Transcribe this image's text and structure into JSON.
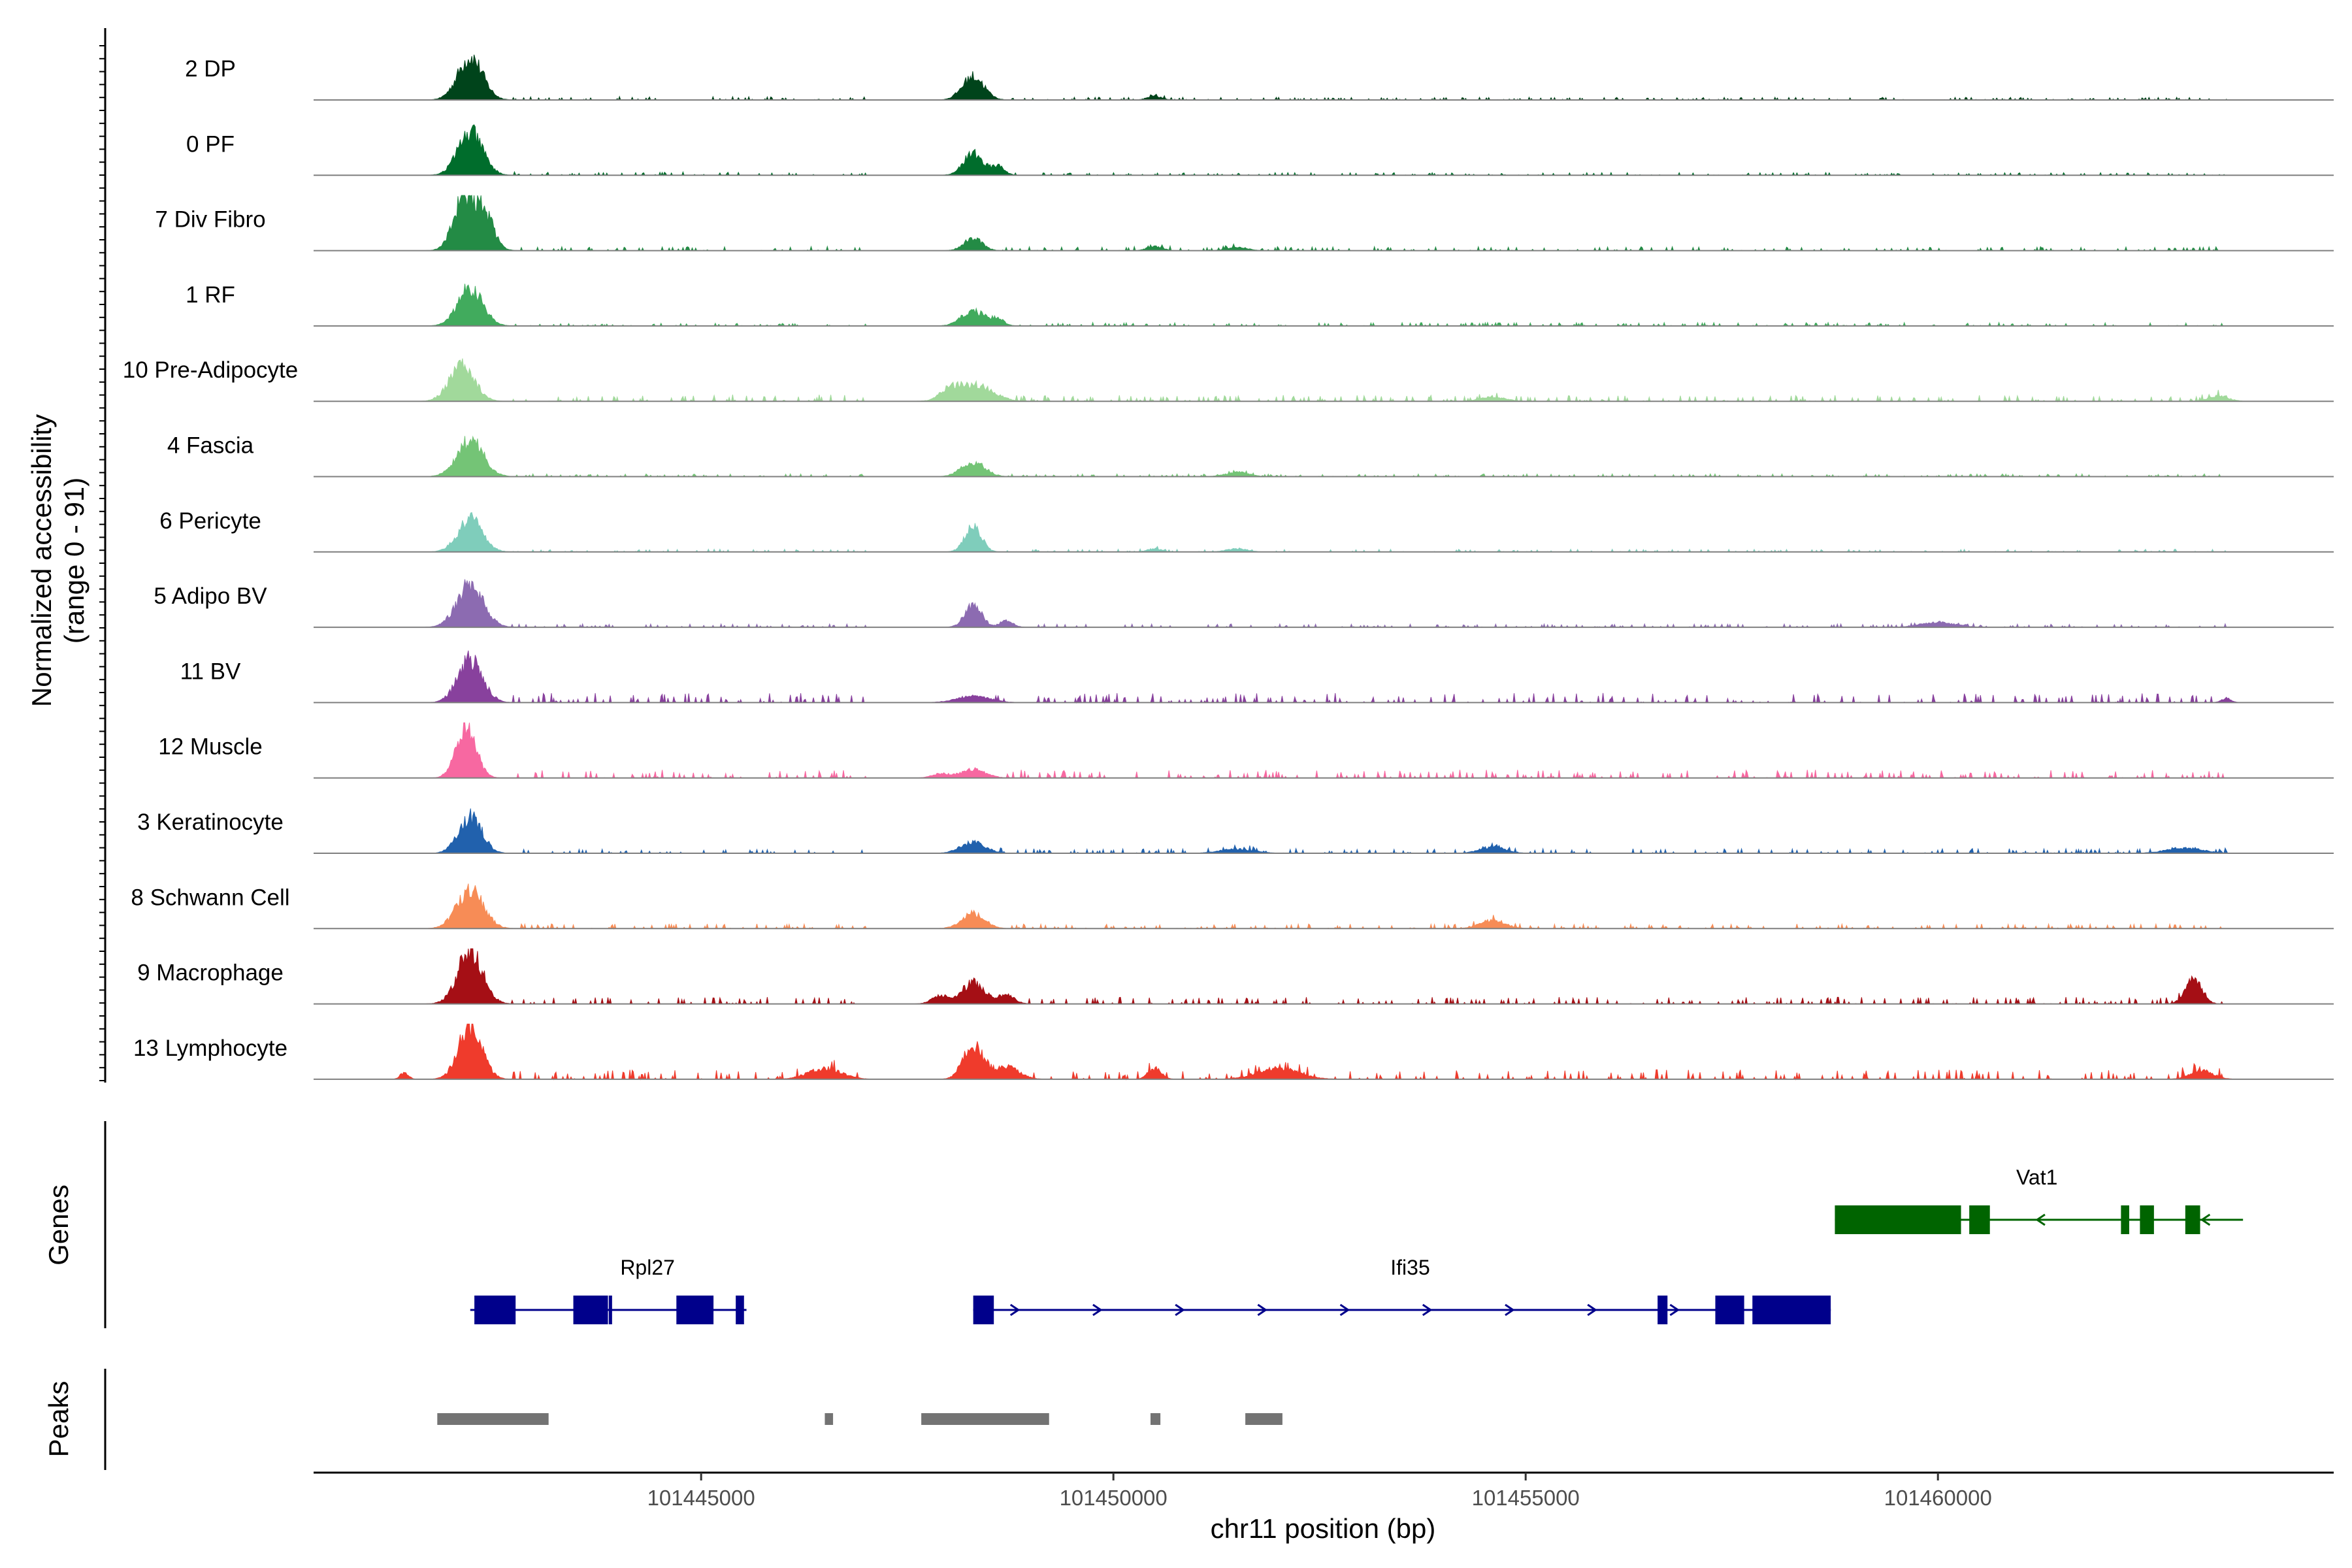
{
  "chart_data": {
    "type": "area",
    "title": "",
    "ylabel": "Normalized accessibility",
    "ylabel_range": "(range 0 - 91)",
    "y_range": [
      0,
      91
    ],
    "xlabel": "chr11 position (bp)",
    "x_range": [
      101440300,
      101464800
    ],
    "x_ticks": [
      101445000,
      101450000,
      101455000,
      101460000
    ],
    "x_tick_labels": [
      "101445000",
      "101450000",
      "101455000",
      "101460000"
    ],
    "tracks": [
      {
        "name": "2 DP",
        "color": "#00441b",
        "peaks": [
          [
            101442200,
            1.0,
            150
          ],
          [
            101448300,
            0.55,
            130
          ],
          [
            101450500,
            0.08,
            90
          ]
        ],
        "noise": [
          [
            101442700,
            101447000,
            0.05
          ],
          [
            101448700,
            101463500,
            0.04
          ]
        ]
      },
      {
        "name": "0 PF",
        "color": "#006d2c",
        "peaks": [
          [
            101442200,
            1.0,
            150
          ],
          [
            101448300,
            0.5,
            120
          ],
          [
            101448600,
            0.2,
            80
          ]
        ],
        "noise": [
          [
            101442700,
            101447000,
            0.05
          ],
          [
            101448800,
            101463500,
            0.04
          ]
        ]
      },
      {
        "name": "7 Div Fibro",
        "color": "#238b45",
        "peaks": [
          [
            101442100,
            1.1,
            120
          ],
          [
            101442350,
            0.95,
            120
          ],
          [
            101448300,
            0.3,
            110
          ],
          [
            101450500,
            0.1,
            90
          ],
          [
            101451500,
            0.08,
            120
          ]
        ],
        "noise": [
          [
            101442800,
            101447000,
            0.06
          ],
          [
            101448600,
            101463500,
            0.06
          ]
        ]
      },
      {
        "name": "1 RF",
        "color": "#41ab5d",
        "peaks": [
          [
            101442200,
            0.9,
            150
          ],
          [
            101448300,
            0.35,
            140
          ],
          [
            101448600,
            0.15,
            80
          ]
        ],
        "noise": [
          [
            101442700,
            101447000,
            0.04
          ],
          [
            101448700,
            101463500,
            0.05
          ]
        ]
      },
      {
        "name": "10 Pre-Adipocyte",
        "color": "#a1d99b",
        "peaks": [
          [
            101442100,
            0.85,
            150
          ],
          [
            101448300,
            0.4,
            220
          ],
          [
            101448000,
            0.2,
            100
          ],
          [
            101454600,
            0.1,
            150
          ],
          [
            101463400,
            0.12,
            120
          ]
        ],
        "noise": [
          [
            101442700,
            101447000,
            0.1
          ],
          [
            101448800,
            101463500,
            0.09
          ]
        ]
      },
      {
        "name": "4 Fascia",
        "color": "#74c476",
        "peaks": [
          [
            101442200,
            0.85,
            160
          ],
          [
            101448300,
            0.35,
            140
          ],
          [
            101451500,
            0.1,
            140
          ]
        ],
        "noise": [
          [
            101442700,
            101447000,
            0.04
          ],
          [
            101448700,
            101463500,
            0.04
          ]
        ]
      },
      {
        "name": "6 Pericyte",
        "color": "#7fcdbb",
        "peaks": [
          [
            101442200,
            0.75,
            150
          ],
          [
            101448300,
            0.6,
            100
          ],
          [
            101450500,
            0.08,
            80
          ],
          [
            101451500,
            0.08,
            120
          ]
        ],
        "noise": [
          [
            101442700,
            101447000,
            0.04
          ],
          [
            101448700,
            101463500,
            0.04
          ]
        ]
      },
      {
        "name": "5 Adipo BV",
        "color": "#8c6bb1",
        "peaks": [
          [
            101442200,
            1.0,
            160
          ],
          [
            101448300,
            0.55,
            100
          ],
          [
            101460000,
            0.12,
            200
          ],
          [
            101448700,
            0.15,
            80
          ]
        ],
        "noise": [
          [
            101442700,
            101447000,
            0.05
          ],
          [
            101448800,
            101463500,
            0.05
          ]
        ]
      },
      {
        "name": "11 BV",
        "color": "#88419d",
        "peaks": [
          [
            101442200,
            1.0,
            150
          ],
          [
            101448300,
            0.15,
            200
          ],
          [
            101463500,
            0.1,
            60
          ]
        ],
        "noise": [
          [
            101442700,
            101447000,
            0.14
          ],
          [
            101448500,
            101463500,
            0.14
          ]
        ]
      },
      {
        "name": "12 Muscle",
        "color": "#f768a1",
        "peaks": [
          [
            101442150,
            1.2,
            120
          ],
          [
            101448300,
            0.2,
            150
          ],
          [
            101447900,
            0.1,
            100
          ]
        ],
        "noise": [
          [
            101442700,
            101447000,
            0.12
          ],
          [
            101448600,
            101463500,
            0.12
          ]
        ]
      },
      {
        "name": "3 Keratinocyte",
        "color": "#2161ad",
        "peaks": [
          [
            101442200,
            0.85,
            140
          ],
          [
            101448300,
            0.25,
            150
          ],
          [
            101451500,
            0.1,
            200
          ],
          [
            101454600,
            0.15,
            150
          ],
          [
            101463000,
            0.12,
            220
          ]
        ],
        "noise": [
          [
            101442700,
            101447000,
            0.06
          ],
          [
            101448600,
            101463500,
            0.07
          ]
        ]
      },
      {
        "name": "8 Schwann Cell",
        "color": "#f78c56",
        "peaks": [
          [
            101442200,
            0.9,
            160
          ],
          [
            101448300,
            0.35,
            140
          ],
          [
            101454600,
            0.2,
            150
          ]
        ],
        "noise": [
          [
            101442700,
            101447000,
            0.07
          ],
          [
            101448700,
            101463500,
            0.07
          ]
        ]
      },
      {
        "name": "9 Macrophage",
        "color": "#a50f15",
        "peaks": [
          [
            101442200,
            1.25,
            150
          ],
          [
            101448300,
            0.5,
            140
          ],
          [
            101448700,
            0.2,
            100
          ],
          [
            101447900,
            0.2,
            100
          ],
          [
            101463100,
            0.55,
            100
          ]
        ],
        "noise": [
          [
            101442700,
            101447000,
            0.1
          ],
          [
            101448900,
            101463500,
            0.1
          ]
        ]
      },
      {
        "name": "13 Lymphocyte",
        "color": "#ef3b2c",
        "peaks": [
          [
            101442200,
            1.25,
            140
          ],
          [
            101448300,
            0.8,
            120
          ],
          [
            101448700,
            0.3,
            150
          ],
          [
            101446500,
            0.25,
            200
          ],
          [
            101452000,
            0.25,
            250
          ],
          [
            101450500,
            0.25,
            80
          ],
          [
            101463200,
            0.2,
            140
          ],
          [
            101441400,
            0.15,
            50
          ]
        ],
        "noise": [
          [
            101442700,
            101447000,
            0.14
          ],
          [
            101448900,
            101463500,
            0.14
          ]
        ]
      }
    ],
    "genes_track_label": "Genes",
    "genes": [
      {
        "name": "Rpl27",
        "strand": "+",
        "color": "#00008b",
        "start": 101442200,
        "end": 101445550,
        "label_pos": 101444350,
        "exons": [
          [
            101442250,
            101442750
          ],
          [
            101443450,
            101443870
          ],
          [
            101443880,
            101443920
          ],
          [
            101444700,
            101445150
          ],
          [
            101445420,
            101445520
          ]
        ]
      },
      {
        "name": "Ifi35",
        "strand": "+",
        "color": "#00008b",
        "start": 101448300,
        "end": 101458700,
        "label_pos": 101453600,
        "exons": [
          [
            101448300,
            101448550
          ],
          [
            101456600,
            101456720
          ],
          [
            101457300,
            101457650
          ],
          [
            101457750,
            101458700
          ]
        ]
      },
      {
        "name": "Vat1",
        "strand": "-",
        "color": "#006400",
        "start": 101458750,
        "end": 101463700,
        "label_pos": 101461200,
        "exons": [
          [
            101458750,
            101460280
          ],
          [
            101460380,
            101460630
          ],
          [
            101462220,
            101462320
          ],
          [
            101462450,
            101462620
          ],
          [
            101463000,
            101463180
          ]
        ]
      }
    ],
    "peaks_track_label": "Peaks",
    "peak_color": "#737373",
    "peak_regions": [
      [
        101441800,
        101443150
      ],
      [
        101446500,
        101446600
      ],
      [
        101447670,
        101449220
      ],
      [
        101450450,
        101450570
      ],
      [
        101451600,
        101452050
      ]
    ]
  }
}
